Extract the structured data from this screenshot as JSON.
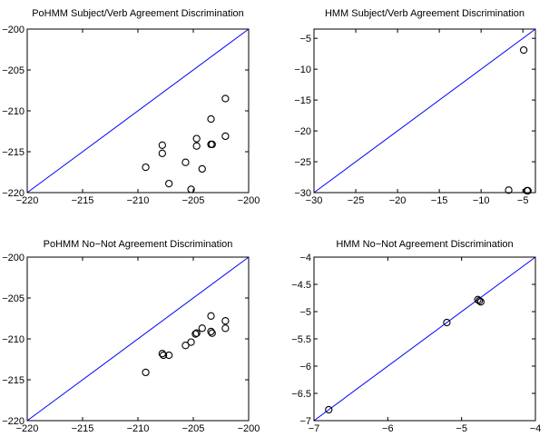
{
  "chart_data": [
    {
      "type": "scatter",
      "title": "PoHMM Subject/Verb Agreement Discrimination",
      "xlim": [
        -220,
        -200
      ],
      "ylim": [
        -220,
        -200
      ],
      "xticks": [
        "-220",
        "-215",
        "-210",
        "-205",
        "-200"
      ],
      "yticks": [
        "-200",
        "-205",
        "-210",
        "-215",
        "-220"
      ],
      "xtick_values": [
        -220,
        -215,
        -210,
        -205,
        -200
      ],
      "ytick_values": [
        -200,
        -205,
        -210,
        -215,
        -220
      ],
      "reference_line": "y = x",
      "marker": "open-circle",
      "grid": false,
      "points": [
        {
          "x": -202.1,
          "y": -208.5
        },
        {
          "x": -202.1,
          "y": -213.1
        },
        {
          "x": -203.4,
          "y": -211.0
        },
        {
          "x": -203.4,
          "y": -214.1
        },
        {
          "x": -203.3,
          "y": -214.1
        },
        {
          "x": -204.7,
          "y": -213.4
        },
        {
          "x": -204.7,
          "y": -214.3
        },
        {
          "x": -204.2,
          "y": -217.1
        },
        {
          "x": -205.7,
          "y": -216.3
        },
        {
          "x": -205.2,
          "y": -219.6
        },
        {
          "x": -207.8,
          "y": -214.2
        },
        {
          "x": -207.8,
          "y": -215.2
        },
        {
          "x": -207.2,
          "y": -218.9
        },
        {
          "x": -209.3,
          "y": -216.9
        }
      ]
    },
    {
      "type": "scatter",
      "title": "HMM Subject/Verb Agreement Discrimination",
      "xlim": [
        -30,
        -3.5
      ],
      "ylim": [
        -30,
        -3.5
      ],
      "xticks": [
        "-30",
        "-25",
        "-20",
        "-15",
        "-10",
        "-5"
      ],
      "yticks": [
        "-5",
        "-10",
        "-15",
        "-20",
        "-25",
        "-30"
      ],
      "xtick_values": [
        -30,
        -25,
        -20,
        -15,
        -10,
        -5
      ],
      "ytick_values": [
        -5,
        -10,
        -15,
        -20,
        -25,
        -30
      ],
      "reference_line": "y = x",
      "marker": "open-circle",
      "grid": false,
      "points": [
        {
          "x": -4.9,
          "y": -6.9
        },
        {
          "x": -6.7,
          "y": -29.6
        },
        {
          "x": -4.5,
          "y": -29.7
        },
        {
          "x": -4.4,
          "y": -29.7
        }
      ]
    },
    {
      "type": "scatter",
      "title": "PoHMM No−Not Agreement Discrimination",
      "xlim": [
        -220,
        -200
      ],
      "ylim": [
        -220,
        -200
      ],
      "xticks": [
        "-220",
        "-215",
        "-210",
        "-205",
        "-200"
      ],
      "yticks": [
        "-200",
        "-205",
        "-210",
        "-215",
        "-220"
      ],
      "xtick_values": [
        -220,
        -215,
        -210,
        -205,
        -200
      ],
      "ytick_values": [
        -200,
        -205,
        -210,
        -215,
        -220
      ],
      "reference_line": "y = x",
      "marker": "open-circle",
      "grid": false,
      "points": [
        {
          "x": -202.1,
          "y": -207.8
        },
        {
          "x": -202.1,
          "y": -208.7
        },
        {
          "x": -203.4,
          "y": -207.2
        },
        {
          "x": -203.4,
          "y": -209.1
        },
        {
          "x": -203.3,
          "y": -209.3
        },
        {
          "x": -204.2,
          "y": -208.7
        },
        {
          "x": -204.7,
          "y": -209.3
        },
        {
          "x": -204.8,
          "y": -209.4
        },
        {
          "x": -205.2,
          "y": -210.4
        },
        {
          "x": -205.7,
          "y": -210.8
        },
        {
          "x": -207.2,
          "y": -212.0
        },
        {
          "x": -207.8,
          "y": -211.8
        },
        {
          "x": -207.7,
          "y": -212.0
        },
        {
          "x": -209.3,
          "y": -214.1
        }
      ]
    },
    {
      "type": "scatter",
      "title": "HMM No−Not Agreement Discrimination",
      "xlim": [
        -7,
        -4
      ],
      "ylim": [
        -7,
        -4
      ],
      "xticks": [
        "-7",
        "-6",
        "-5",
        "-4"
      ],
      "yticks": [
        "-4",
        "-4.5",
        "-5",
        "-5.5",
        "-6",
        "-6.5",
        "-7"
      ],
      "xtick_values": [
        -7,
        -6,
        -5,
        -4
      ],
      "ytick_values": [
        -4,
        -4.5,
        -5,
        -5.5,
        -6,
        -6.5,
        -7
      ],
      "reference_line": "y = x",
      "marker": "open-circle",
      "grid": false,
      "points": [
        {
          "x": -6.8,
          "y": -6.8
        },
        {
          "x": -5.2,
          "y": -5.2
        },
        {
          "x": -4.78,
          "y": -4.78
        },
        {
          "x": -4.76,
          "y": -4.8
        },
        {
          "x": -4.74,
          "y": -4.82
        }
      ]
    }
  ]
}
